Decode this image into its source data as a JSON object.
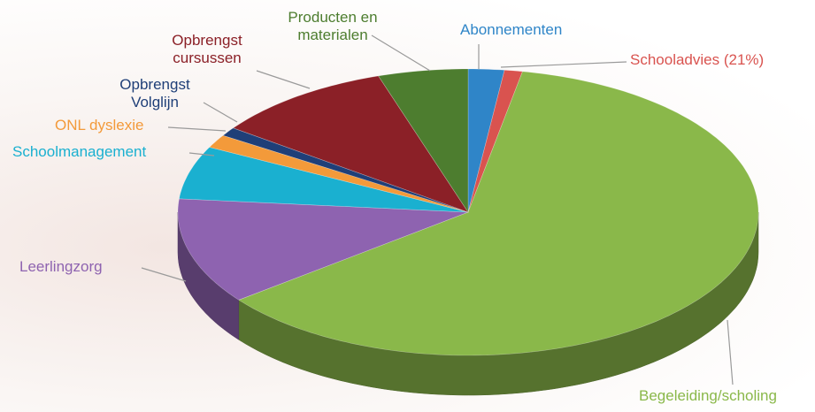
{
  "chart_data": {
    "type": "pie",
    "categories": [
      "Abonnementen",
      "Schooladvies (21%)",
      "Begeleiding/scholing",
      "Leerlingzorg",
      "Schoolmanagement",
      "ONL dyslexie",
      "Opbrengst Volglijn",
      "Opbrengst cursussen",
      "Producten en materialen"
    ],
    "values": [
      2,
      1,
      61.5,
      12,
      6,
      1.5,
      1,
      10,
      5
    ],
    "colors": [
      "#2f85c8",
      "#d9534f",
      "#8ab84a",
      "#8e63b0",
      "#1ab0d0",
      "#f39a3a",
      "#1f3f78",
      "#8b2027",
      "#4d7d2f"
    ]
  }
}
